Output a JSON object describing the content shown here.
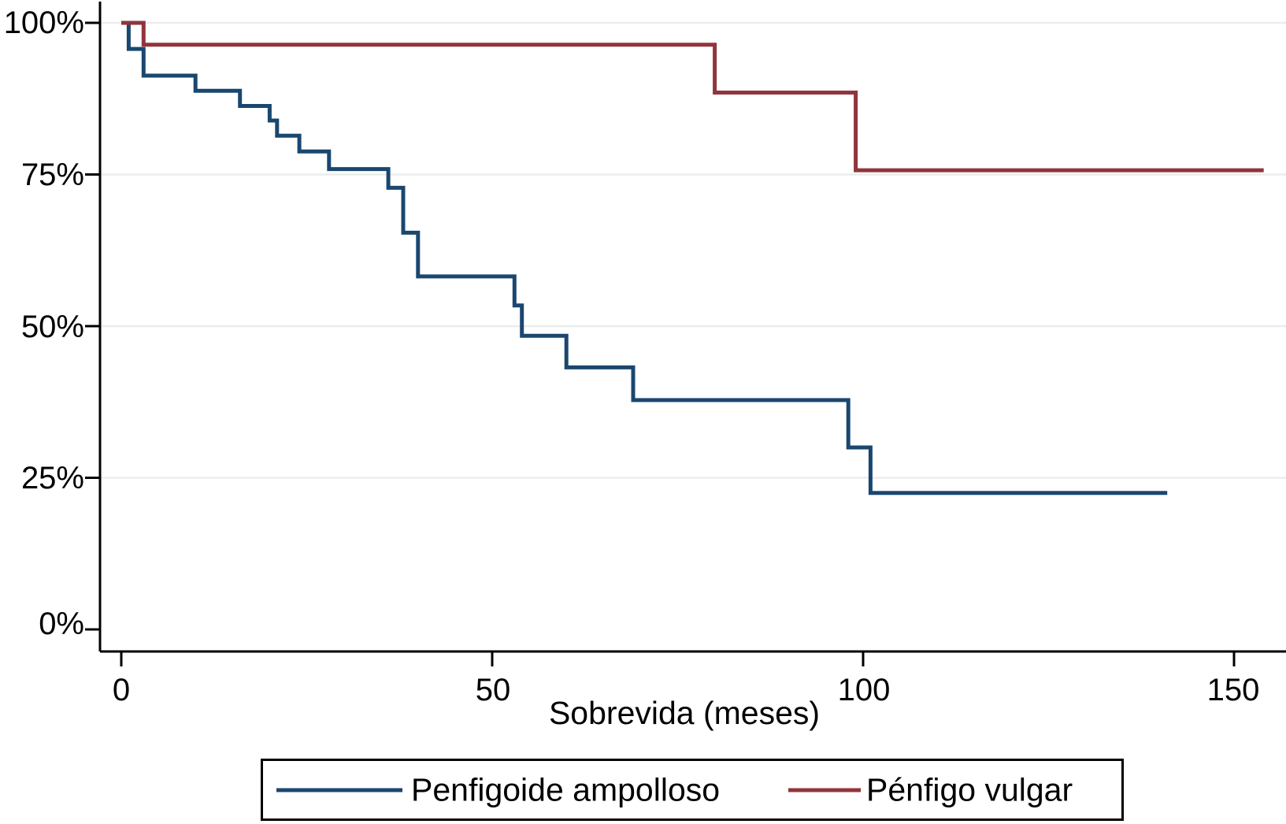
{
  "chart_data": {
    "type": "line",
    "subtype": "kaplan-meier-step",
    "title": "",
    "xlabel": "Sobrevida (meses)",
    "ylabel": "",
    "x_ticks": [
      0,
      50,
      100,
      150
    ],
    "x_tick_labels": [
      "0",
      "50",
      "100",
      "150"
    ],
    "y_ticks": [
      0,
      25,
      50,
      75,
      100
    ],
    "y_tick_labels": [
      "0%",
      "25%",
      "50%",
      "75%",
      "100%"
    ],
    "xlim": [
      -3,
      157
    ],
    "ylim": [
      0,
      104
    ],
    "grid": "horizontal",
    "grid_y_values": [
      25,
      50,
      75,
      100
    ],
    "legend_position": "bottom",
    "axis_color": "#000000",
    "gridline_color": "#e9eeec",
    "series": [
      {
        "name": "Penfigoide ampolloso",
        "color": "#1a476f",
        "points": [
          [
            0,
            100
          ],
          [
            1,
            95.7
          ],
          [
            3,
            91.3
          ],
          [
            10,
            88.8
          ],
          [
            16,
            86.3
          ],
          [
            20,
            83.9
          ],
          [
            21,
            81.4
          ],
          [
            24,
            78.8
          ],
          [
            28,
            75.9
          ],
          [
            36,
            72.8
          ],
          [
            38,
            65.4
          ],
          [
            40,
            58.2
          ],
          [
            53,
            53.4
          ],
          [
            54,
            48.4
          ],
          [
            60,
            43.2
          ],
          [
            69,
            37.8
          ],
          [
            98,
            30
          ],
          [
            101,
            22.5
          ]
        ],
        "end_x": 141
      },
      {
        "name": "Pénfigo vulgar",
        "color": "#90353b",
        "points": [
          [
            0,
            100
          ],
          [
            3,
            96.4
          ],
          [
            80,
            88.5
          ],
          [
            99,
            75.7
          ]
        ],
        "end_x": 154
      }
    ]
  }
}
